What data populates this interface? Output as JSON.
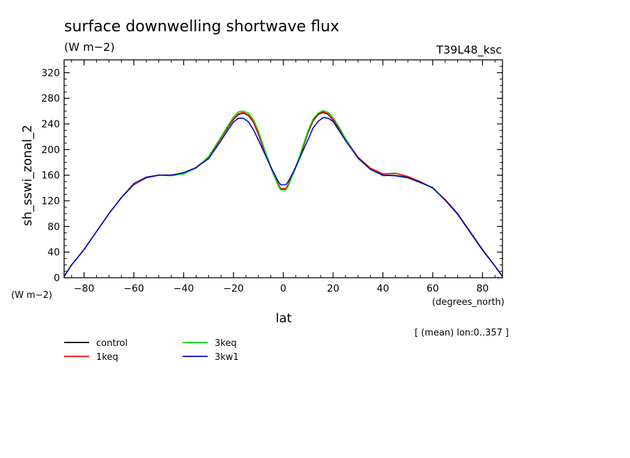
{
  "chart_data": {
    "type": "line",
    "title": "surface downwelling shortwave flux",
    "units_top": "(W m−2)",
    "tag": "T39L48_ksc",
    "ylabel": "sh_sswi_zonal_2",
    "ylabel_units": "(W m−2)",
    "xlabel": "lat",
    "xlabel_units": "(degrees_north)",
    "footnote": "[ (mean) lon:0..357 ]",
    "xlim": [
      -88,
      88
    ],
    "ylim": [
      0,
      340
    ],
    "xticks": [
      -80,
      -60,
      -40,
      -20,
      0,
      20,
      40,
      60,
      80
    ],
    "xtick_labels": [
      "−80",
      "−60",
      "−40",
      "−20",
      "0",
      "20",
      "40",
      "60",
      "80"
    ],
    "yticks": [
      0,
      40,
      80,
      120,
      160,
      200,
      240,
      280,
      320
    ],
    "ytick_labels": [
      "0",
      "40",
      "80",
      "120",
      "160",
      "200",
      "240",
      "280",
      "320"
    ],
    "x": [
      -88,
      -85,
      -80,
      -75,
      -70,
      -65,
      -60,
      -55,
      -50,
      -45,
      -40,
      -35,
      -30,
      -25,
      -22,
      -20,
      -18,
      -16,
      -14,
      -12,
      -10,
      -8,
      -6,
      -4,
      -2,
      -1,
      1,
      2,
      4,
      6,
      8,
      10,
      12,
      14,
      16,
      18,
      20,
      22,
      25,
      30,
      35,
      40,
      45,
      50,
      55,
      60,
      65,
      70,
      75,
      80,
      85,
      88
    ],
    "series": [
      {
        "name": "control",
        "color": "#000000",
        "values": [
          2,
          20,
          44,
          72,
          100,
          125,
          145,
          156,
          160,
          160,
          163,
          172,
          188,
          218,
          236,
          247,
          255,
          257,
          253,
          243,
          224,
          202,
          182,
          162,
          145,
          138,
          138,
          145,
          162,
          182,
          204,
          227,
          245,
          255,
          258,
          255,
          246,
          235,
          216,
          187,
          170,
          160,
          160,
          157,
          150,
          140,
          122,
          100,
          72,
          44,
          18,
          2
        ]
      },
      {
        "name": "1keq",
        "color": "#ff0000",
        "values": [
          2,
          20,
          44,
          72,
          100,
          125,
          145,
          156,
          160,
          160,
          163,
          172,
          188,
          218,
          237,
          248,
          256,
          258,
          254,
          244,
          225,
          203,
          183,
          163,
          146,
          139,
          139,
          146,
          163,
          183,
          205,
          228,
          246,
          256,
          259,
          256,
          247,
          236,
          217,
          188,
          171,
          162,
          163,
          158,
          150,
          140,
          122,
          100,
          72,
          44,
          18,
          2
        ]
      },
      {
        "name": "3keq",
        "color": "#00dd00",
        "values": [
          2,
          20,
          44,
          72,
          100,
          125,
          146,
          157,
          160,
          159,
          162,
          171,
          189,
          220,
          239,
          251,
          259,
          260,
          257,
          247,
          229,
          206,
          184,
          162,
          143,
          137,
          137,
          143,
          162,
          184,
          207,
          230,
          248,
          257,
          261,
          258,
          250,
          238,
          217,
          186,
          169,
          159,
          160,
          156,
          148,
          141,
          121,
          99,
          71,
          43,
          18,
          2
        ]
      },
      {
        "name": "3kw1",
        "color": "#0000cc",
        "values": [
          2,
          20,
          44,
          72,
          100,
          125,
          147,
          157,
          160,
          160,
          164,
          172,
          186,
          214,
          232,
          243,
          249,
          249,
          243,
          231,
          215,
          198,
          181,
          165,
          150,
          145,
          145,
          150,
          165,
          181,
          199,
          216,
          234,
          244,
          250,
          249,
          244,
          232,
          214,
          187,
          169,
          160,
          159,
          156,
          149,
          140,
          121,
          99,
          71,
          43,
          18,
          2
        ]
      }
    ],
    "legend_placement": "bottom-left"
  }
}
